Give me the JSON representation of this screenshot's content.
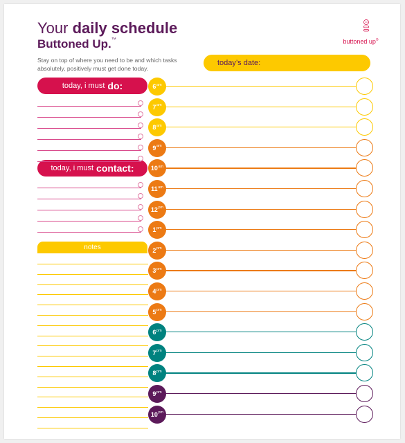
{
  "title": {
    "prefix": "Your ",
    "bold": "daily schedule"
  },
  "subtitle": {
    "text": "Buttoned Up.",
    "mark": "™"
  },
  "intro": "Stay on top of where you need to be and which tasks absolutely, positively must get done today.",
  "logo": {
    "text": "buttoned up",
    "mark": "®",
    "icon": "button-stack-icon",
    "color": "#d6114d"
  },
  "date": {
    "label": "today’s date:"
  },
  "do_section": {
    "prefix": "today, i must",
    "emph": "do:",
    "lines": 6
  },
  "contact_section": {
    "prefix": "today, i must",
    "emph": "contact:",
    "lines": 5
  },
  "notes": {
    "label": "notes",
    "lines": 17
  },
  "colors": {
    "magenta": "#d6114d",
    "pink_line": "#d94a8c",
    "yellow": "#fdc900",
    "orange": "#ec7a14",
    "teal": "#00827f",
    "purple": "#5c1a5a"
  },
  "hours": [
    {
      "num": "6",
      "suffix": "am",
      "color": "#fdc900"
    },
    {
      "num": "7",
      "suffix": "am",
      "color": "#fdc900"
    },
    {
      "num": "8",
      "suffix": "am",
      "color": "#fdc900"
    },
    {
      "num": "9",
      "suffix": "am",
      "color": "#ec7a14"
    },
    {
      "num": "10",
      "suffix": "am",
      "color": "#ec7a14"
    },
    {
      "num": "11",
      "suffix": "am",
      "color": "#ec7a14"
    },
    {
      "num": "12",
      "suffix": "pm",
      "color": "#ec7a14"
    },
    {
      "num": "1",
      "suffix": "pm",
      "color": "#ec7a14"
    },
    {
      "num": "2",
      "suffix": "pm",
      "color": "#ec7a14"
    },
    {
      "num": "3",
      "suffix": "pm",
      "color": "#ec7a14"
    },
    {
      "num": "4",
      "suffix": "pm",
      "color": "#ec7a14"
    },
    {
      "num": "5",
      "suffix": "pm",
      "color": "#ec7a14"
    },
    {
      "num": "6",
      "suffix": "pm",
      "color": "#00827f"
    },
    {
      "num": "7",
      "suffix": "pm",
      "color": "#00827f"
    },
    {
      "num": "8",
      "suffix": "pm",
      "color": "#00827f"
    },
    {
      "num": "9",
      "suffix": "pm",
      "color": "#5c1a5a"
    },
    {
      "num": "10",
      "suffix": "pm",
      "color": "#5c1a5a"
    }
  ]
}
